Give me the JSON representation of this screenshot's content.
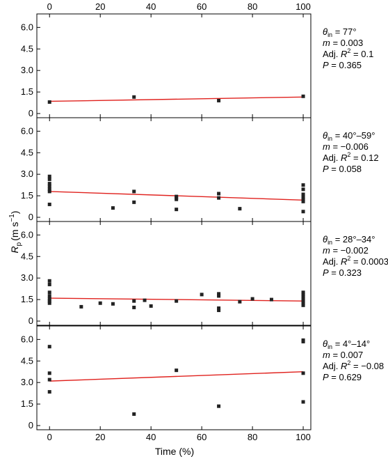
{
  "chart_data": {
    "type": "scatter",
    "xlabel_text": "Time (%)",
    "ylabel": {
      "symbol": "R",
      "subscript": "p",
      "unit_prefix": "(m s",
      "unit_exp": "−1",
      "unit_suffix": ")"
    },
    "xlim": [
      -5,
      103
    ],
    "ylim": [
      0,
      6.6
    ],
    "x_ticks": [
      0,
      20,
      40,
      60,
      80,
      100
    ],
    "y_ticks": [
      0,
      1.5,
      3.0,
      4.5,
      6.0
    ],
    "y_tick_labels": [
      "0",
      "1.5",
      "3.0",
      "4.5",
      "6.0"
    ],
    "point_color": "#222222",
    "line_color": "#e0211d",
    "panels": [
      {
        "theta_label": "77°",
        "m": "0.003",
        "adj_r2": "0.1",
        "p": "0.365",
        "fit": [
          [
            0,
            0.85
          ],
          [
            100,
            1.15
          ]
        ],
        "points": [
          [
            0,
            0.8
          ],
          [
            33.3,
            1.15
          ],
          [
            66.7,
            0.9
          ],
          [
            100,
            1.2
          ]
        ]
      },
      {
        "theta_label": "40°–59°",
        "m": "−0.006",
        "adj_r2": "0.12",
        "p": "0.058",
        "fit": [
          [
            0,
            1.8
          ],
          [
            100,
            1.2
          ]
        ],
        "points": [
          [
            0,
            2.85
          ],
          [
            0,
            2.65
          ],
          [
            0,
            2.35
          ],
          [
            0,
            2.15
          ],
          [
            0,
            1.95
          ],
          [
            0,
            1.8
          ],
          [
            0,
            0.9
          ],
          [
            25,
            0.65
          ],
          [
            33.3,
            1.8
          ],
          [
            33.3,
            1.05
          ],
          [
            50,
            1.45
          ],
          [
            50,
            1.35
          ],
          [
            50,
            1.25
          ],
          [
            50,
            0.55
          ],
          [
            66.7,
            1.65
          ],
          [
            66.7,
            1.35
          ],
          [
            75,
            0.6
          ],
          [
            100,
            2.25
          ],
          [
            100,
            1.95
          ],
          [
            100,
            1.6
          ],
          [
            100,
            1.4
          ],
          [
            100,
            1.25
          ],
          [
            100,
            1.1
          ],
          [
            100,
            0.4
          ]
        ]
      },
      {
        "theta_label": "28°–34°",
        "m": "−0.002",
        "adj_r2": "0.0003",
        "p": "0.323",
        "fit": [
          [
            0,
            1.6
          ],
          [
            100,
            1.4
          ]
        ],
        "points": [
          [
            0,
            2.8
          ],
          [
            0,
            2.55
          ],
          [
            0,
            2.0
          ],
          [
            0,
            1.75
          ],
          [
            0,
            1.55
          ],
          [
            0,
            1.4
          ],
          [
            0,
            1.25
          ],
          [
            12.5,
            1.0
          ],
          [
            20,
            1.25
          ],
          [
            25,
            1.2
          ],
          [
            33.3,
            1.4
          ],
          [
            33.3,
            0.95
          ],
          [
            37.5,
            1.45
          ],
          [
            40,
            1.05
          ],
          [
            50,
            1.4
          ],
          [
            60,
            1.85
          ],
          [
            66.7,
            1.9
          ],
          [
            66.7,
            1.75
          ],
          [
            66.7,
            0.9
          ],
          [
            66.7,
            0.75
          ],
          [
            75,
            1.35
          ],
          [
            80,
            1.55
          ],
          [
            87.5,
            1.5
          ],
          [
            100,
            2.0
          ],
          [
            100,
            1.85
          ],
          [
            100,
            1.7
          ],
          [
            100,
            1.55
          ],
          [
            100,
            1.4
          ],
          [
            100,
            1.25
          ],
          [
            100,
            1.1
          ]
        ]
      },
      {
        "theta_label": "4°–14°",
        "m": "0.007",
        "adj_r2": "−0.08",
        "p": "0.629",
        "fit": [
          [
            0,
            3.1
          ],
          [
            100,
            3.75
          ]
        ],
        "points": [
          [
            0,
            5.5
          ],
          [
            0,
            3.65
          ],
          [
            0,
            3.2
          ],
          [
            0,
            2.35
          ],
          [
            33.3,
            0.8
          ],
          [
            50,
            3.85
          ],
          [
            66.7,
            1.35
          ],
          [
            100,
            5.95
          ],
          [
            100,
            5.85
          ],
          [
            100,
            3.65
          ],
          [
            100,
            1.65
          ]
        ]
      }
    ]
  }
}
